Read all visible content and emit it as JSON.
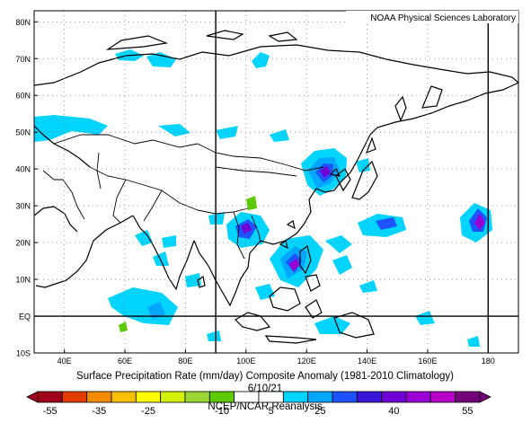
{
  "credit": "NOAA Physical Sciences Laboratory",
  "title": "Surface Precipitation Rate (mm/day) Composite Anomaly (1981-2010 Climatology)",
  "date": "6/10/21",
  "source": "NCEP/NCAR Reanalysis",
  "lat_labels": [
    {
      "text": "80N",
      "lat": 80
    },
    {
      "text": "70N",
      "lat": 70
    },
    {
      "text": "60N",
      "lat": 60
    },
    {
      "text": "50N",
      "lat": 50
    },
    {
      "text": "40N",
      "lat": 40
    },
    {
      "text": "30N",
      "lat": 30
    },
    {
      "text": "20N",
      "lat": 20
    },
    {
      "text": "10N",
      "lat": 10
    },
    {
      "text": "EQ",
      "lat": 0
    },
    {
      "text": "10S",
      "lat": -10
    }
  ],
  "lon_labels": [
    {
      "text": "40E",
      "lon": 40
    },
    {
      "text": "60E",
      "lon": 60
    },
    {
      "text": "80E",
      "lon": 80
    },
    {
      "text": "100E",
      "lon": 100
    },
    {
      "text": "120E",
      "lon": 120
    },
    {
      "text": "140E",
      "lon": 140
    },
    {
      "text": "160E",
      "lon": 160
    },
    {
      "text": "180",
      "lon": 180
    }
  ],
  "map_extent": {
    "lon_min": 30,
    "lon_max": 190,
    "lat_min": -10,
    "lat_max": 83
  },
  "colorbar": {
    "colors": [
      "#a0001a",
      "#e23c00",
      "#f38a00",
      "#f8c000",
      "#ffff00",
      "#d2f000",
      "#99d633",
      "#5ccc00",
      "#ffffff",
      "#ffffff",
      "#00d4ff",
      "#00a6ff",
      "#1f52ff",
      "#3b15d6",
      "#6f00d6",
      "#9a00d6",
      "#b700c8",
      "#74007a"
    ],
    "labels": [
      {
        "text": "-55",
        "index": 0
      },
      {
        "text": "-35",
        "index": 2
      },
      {
        "text": "-25",
        "index": 4
      },
      {
        "text": "-10",
        "index": 7
      },
      {
        "text": "5",
        "index": 9
      },
      {
        "text": "25",
        "index": 11
      },
      {
        "text": "40",
        "index": 14
      },
      {
        "text": "55",
        "index": 17
      }
    ]
  },
  "anomaly_colors": {
    "light": "#00d4ff",
    "medium": "#00a6ff",
    "dark": "#1f52ff",
    "purple": "#6f00d6",
    "magenta": "#9a00d6",
    "green": "#5ccc00"
  }
}
